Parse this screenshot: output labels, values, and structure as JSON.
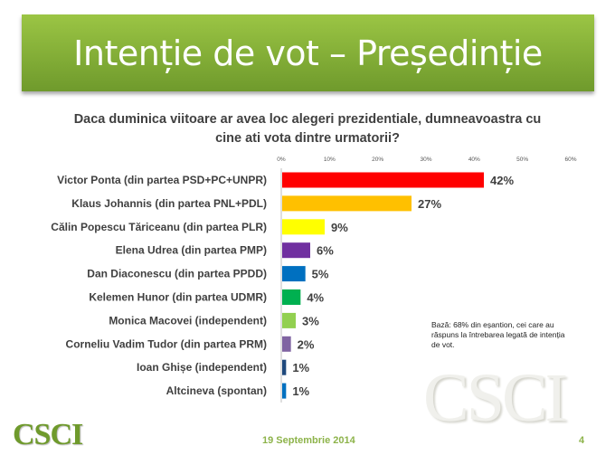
{
  "title": "Intenție de vot – Președinție",
  "chart_data": {
    "type": "bar",
    "orientation": "horizontal",
    "title": "Daca duminica viitoare ar avea loc alegeri prezidentiale, dumneavoastra cu cine ati vota dintre urmatorii?",
    "categories": [
      "Victor Ponta (din partea PSD+PC+UNPR)",
      "Klaus Johannis (din partea PNL+PDL)",
      "Călin Popescu Tăriceanu (din partea PLR)",
      "Elena Udrea (din partea PMP)",
      "Dan Diaconescu (din partea PPDD)",
      "Kelemen Hunor (din partea UDMR)",
      "Monica Macovei (independent)",
      "Corneliu Vadim Tudor (din partea PRM)",
      "Ioan Ghișe (independent)",
      "Altcineva (spontan)"
    ],
    "values": [
      42,
      27,
      9,
      6,
      5,
      4,
      3,
      2,
      1,
      1
    ],
    "value_labels": [
      "42%",
      "27%",
      "9%",
      "6%",
      "5%",
      "4%",
      "3%",
      "2%",
      "1%",
      "1%"
    ],
    "colors": [
      "#ff0000",
      "#ffc000",
      "#ffff00",
      "#7030a0",
      "#0070c0",
      "#00b050",
      "#92d050",
      "#8064a2",
      "#1f497d",
      "#0070c0"
    ],
    "xlim": [
      0,
      60
    ],
    "ticks": [
      "0%",
      "10%",
      "20%",
      "30%",
      "40%",
      "50%",
      "60%"
    ],
    "tick_position": "top",
    "grid": false
  },
  "note": "Bază: 68% din eșantion, cei care au răspuns la întrebarea legată de intenția de vot.",
  "footer": {
    "date": "19 Septembrie 2014",
    "page": "4"
  },
  "logo": {
    "small": "CSCI",
    "watermark": "CSCI"
  },
  "colors": {
    "banner": "#86b03a",
    "footer_text": "#8db34a"
  }
}
